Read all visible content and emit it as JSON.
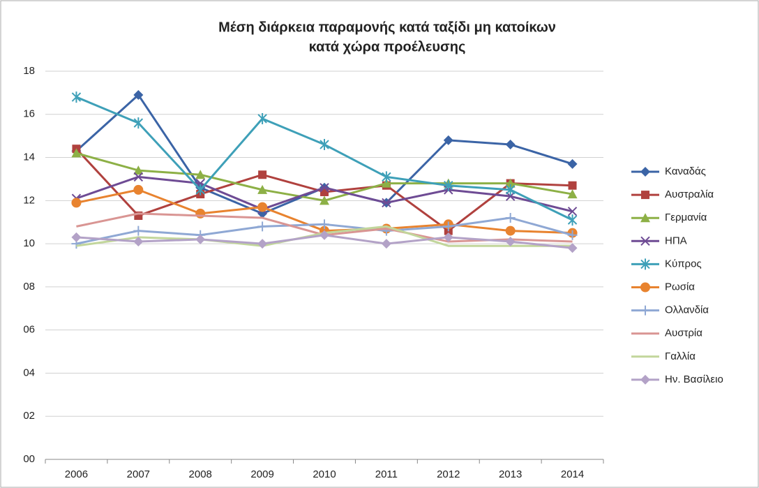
{
  "chart_data": {
    "type": "line",
    "title": [
      "Μέση διάρκεια παραμονής κατά ταξίδι  μη κατοίκων",
      "κατά χώρα προέλευσης"
    ],
    "categories": [
      "2006",
      "2007",
      "2008",
      "2009",
      "2010",
      "2011",
      "2012",
      "2013",
      "2014"
    ],
    "ylim": [
      0,
      18
    ],
    "yticks": [
      {
        "value": 0,
        "label": "00"
      },
      {
        "value": 2,
        "label": "02"
      },
      {
        "value": 4,
        "label": "04"
      },
      {
        "value": 6,
        "label": "06"
      },
      {
        "value": 8,
        "label": "08"
      },
      10,
      12,
      14,
      16,
      18
    ],
    "grid": true,
    "legend": "right",
    "series": [
      {
        "name": "Καναδάς",
        "color": "#3b64a6",
        "marker": "diamond",
        "values": [
          14.3,
          16.9,
          12.6,
          11.4,
          12.6,
          11.9,
          14.8,
          14.6,
          13.7
        ]
      },
      {
        "name": "Αυστραλία",
        "color": "#b0413e",
        "marker": "square",
        "values": [
          14.4,
          11.3,
          12.3,
          13.2,
          12.4,
          12.7,
          10.6,
          12.8,
          12.7
        ]
      },
      {
        "name": "Γερμανία",
        "color": "#8db046",
        "marker": "triangle",
        "values": [
          14.2,
          13.4,
          13.2,
          12.5,
          12.0,
          12.8,
          12.8,
          12.8,
          12.3
        ]
      },
      {
        "name": "ΗΠΑ",
        "color": "#6e4b94",
        "marker": "x",
        "values": [
          12.1,
          13.1,
          12.8,
          11.6,
          12.6,
          11.9,
          12.5,
          12.2,
          11.5
        ]
      },
      {
        "name": "Κύπρος",
        "color": "#3ea0b8",
        "marker": "star",
        "values": [
          16.8,
          15.6,
          12.5,
          15.8,
          14.6,
          13.1,
          12.7,
          12.5,
          11.1
        ]
      },
      {
        "name": "Ρωσία",
        "color": "#e8832f",
        "marker": "circle",
        "values": [
          11.9,
          12.5,
          11.4,
          11.7,
          10.6,
          10.7,
          10.9,
          10.6,
          10.5
        ]
      },
      {
        "name": "Ολλανδία",
        "color": "#8fa8d4",
        "marker": "plus",
        "values": [
          10.0,
          10.6,
          10.4,
          10.8,
          10.9,
          10.6,
          10.8,
          11.2,
          10.4
        ]
      },
      {
        "name": "Αυστρία",
        "color": "#d99593",
        "marker": "none",
        "values": [
          10.8,
          11.4,
          11.3,
          11.2,
          10.4,
          10.7,
          10.1,
          10.2,
          10.1
        ]
      },
      {
        "name": "Γαλλία",
        "color": "#c2d69b",
        "marker": "none",
        "values": [
          9.9,
          10.3,
          10.2,
          9.9,
          10.5,
          10.8,
          9.9,
          9.9,
          9.9
        ]
      },
      {
        "name": "Ην. Βασίλειο",
        "color": "#b3a2c7",
        "marker": "diamond",
        "values": [
          10.3,
          10.1,
          10.2,
          10.0,
          10.4,
          10.0,
          10.3,
          10.1,
          9.8
        ]
      }
    ]
  }
}
